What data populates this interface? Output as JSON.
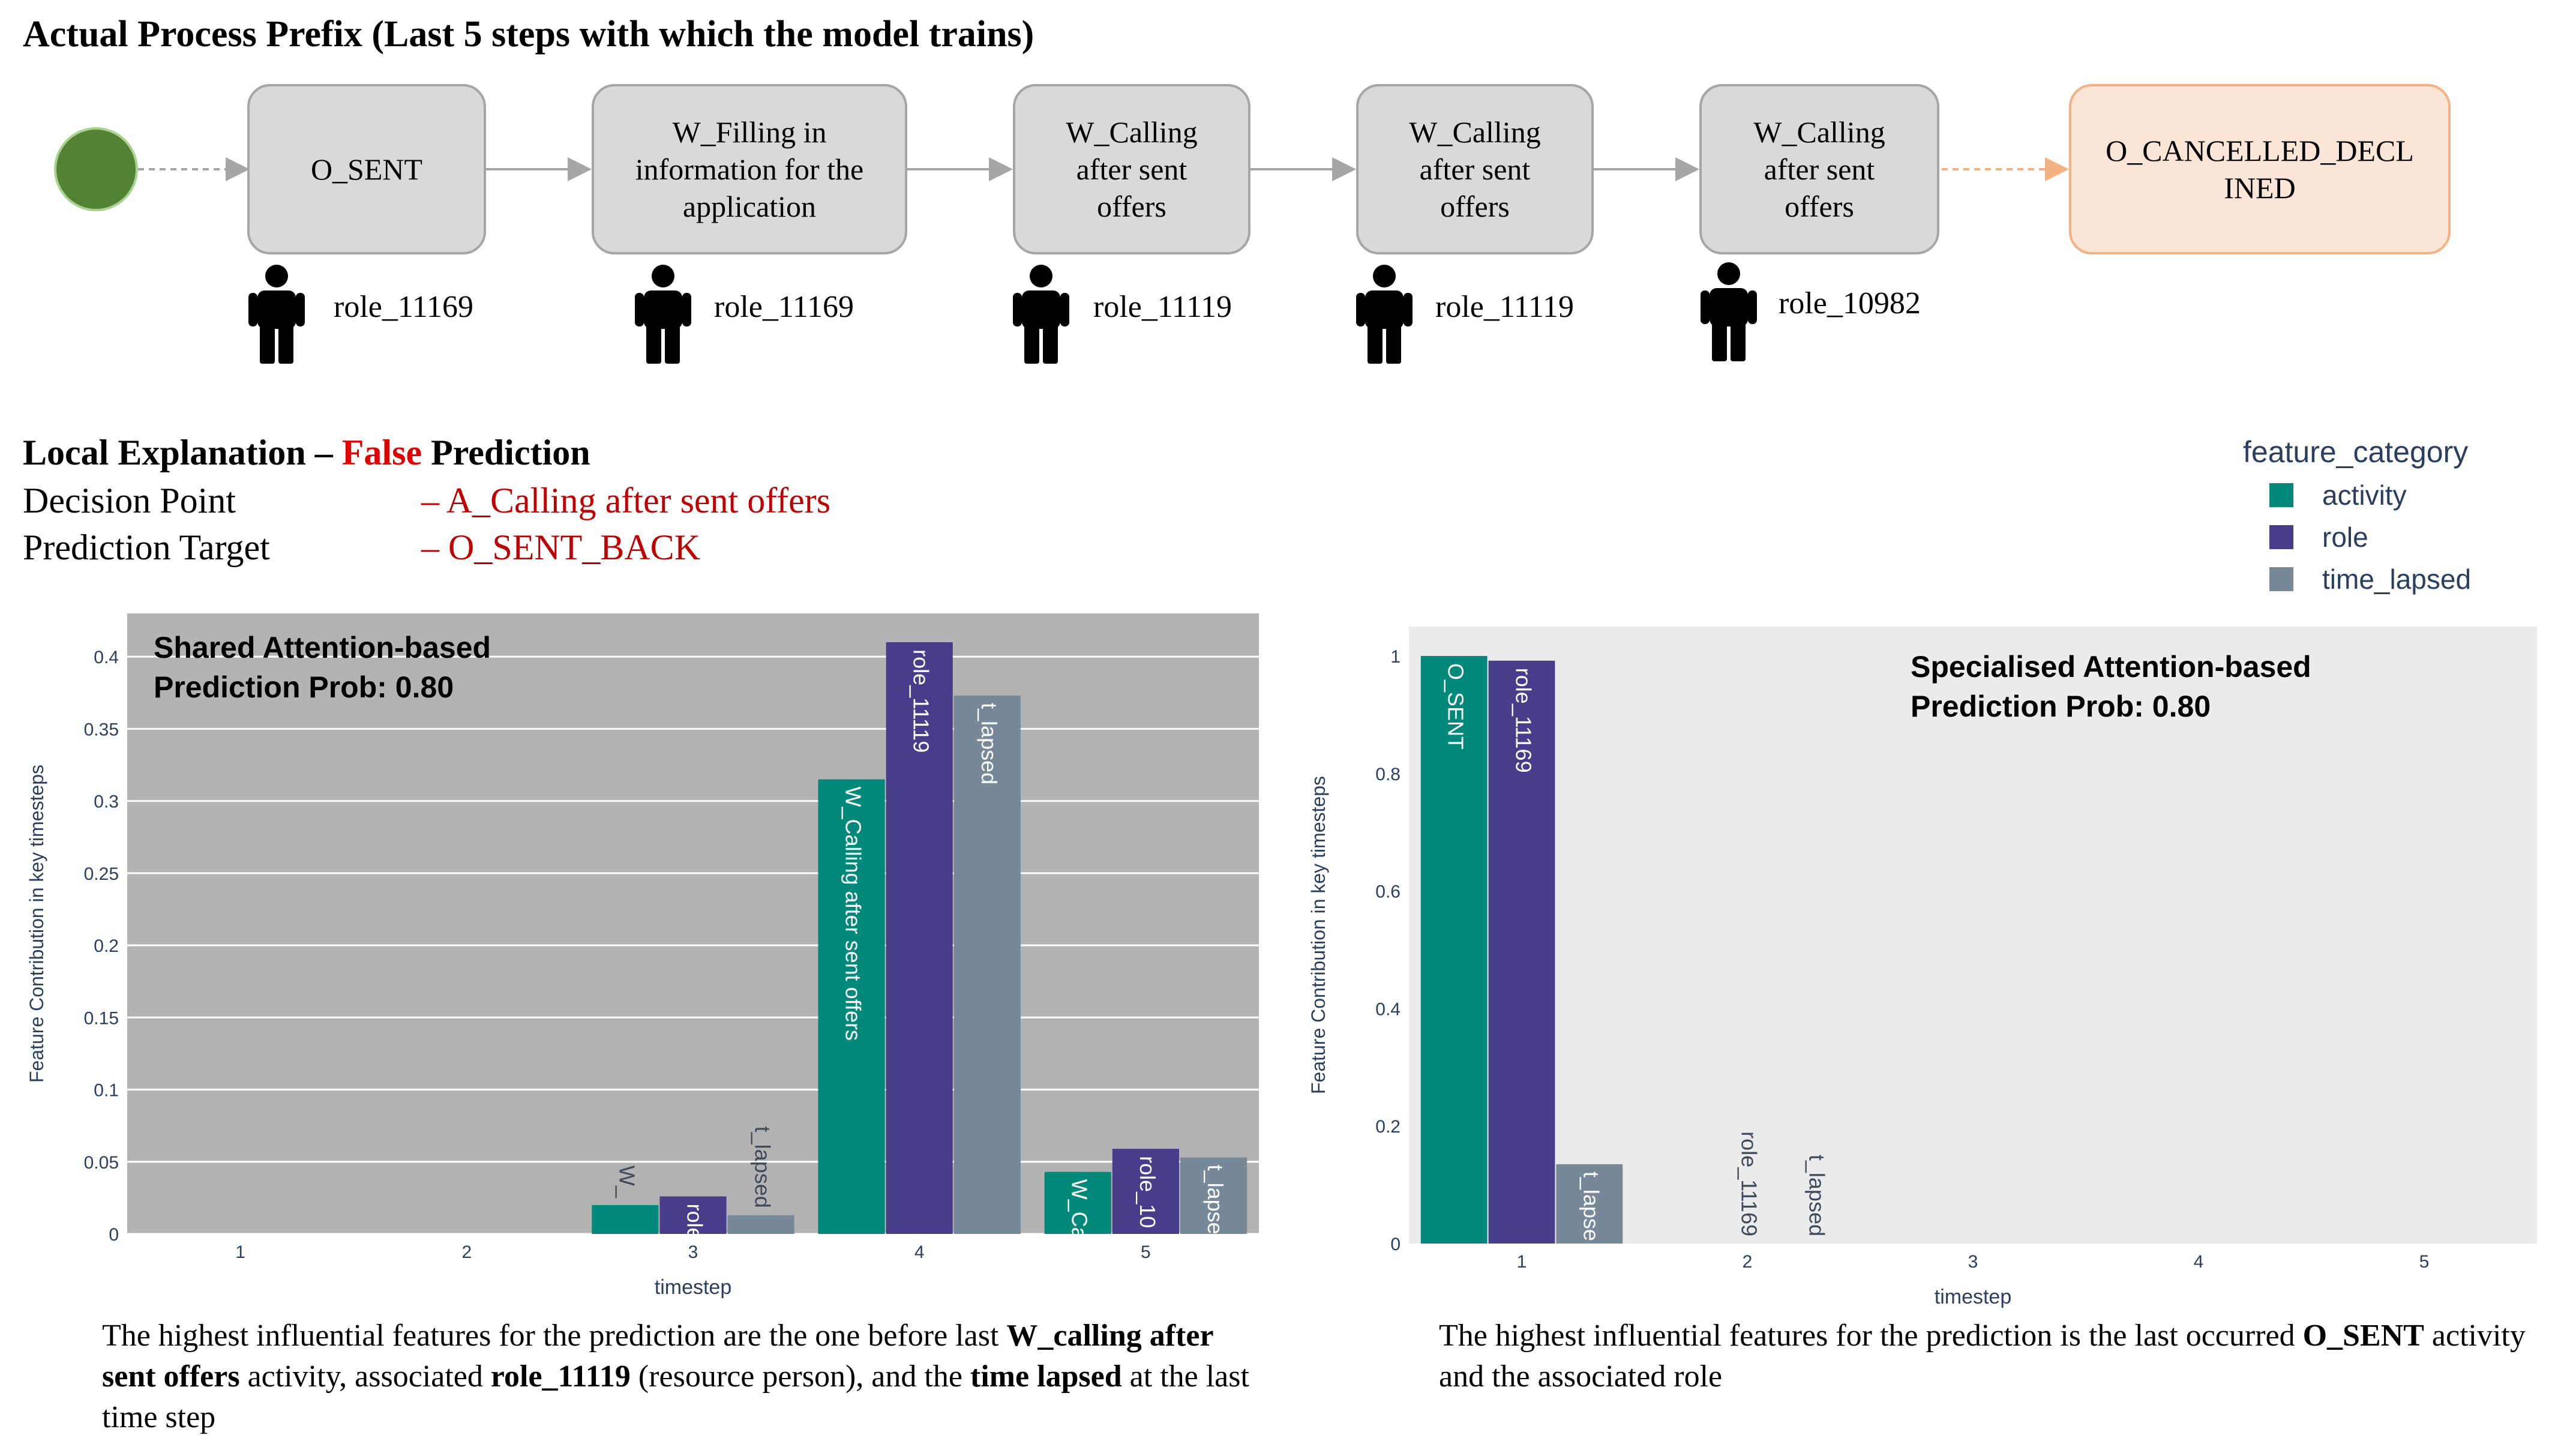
{
  "title": "Actual Process Prefix (Last 5 steps with which the model trains)",
  "process_steps": [
    {
      "activity": "O_SENT",
      "role": "role_11169"
    },
    {
      "activity": "W_Filling in information for the application",
      "role": "role_11169"
    },
    {
      "activity": "W_Calling after sent offers",
      "role": "role_11119"
    },
    {
      "activity": "W_Calling after sent offers",
      "role": "role_11119"
    },
    {
      "activity": "W_Calling after sent offers",
      "role": "role_10982"
    }
  ],
  "process_lines": [
    [
      "O_SENT"
    ],
    [
      "W_Filling in",
      "information for the",
      "application"
    ],
    [
      "W_Calling",
      "after sent",
      "offers"
    ],
    [
      "W_Calling",
      "after sent",
      "offers"
    ],
    [
      "W_Calling",
      "after sent",
      "offers"
    ]
  ],
  "process_target": {
    "label": "O_CANCELLED_DECLINED",
    "lines": [
      "O_CANCELLED_DECL",
      "INED"
    ]
  },
  "local_explanation": {
    "heading_prefix": "Local Explanation – ",
    "heading_false": "False",
    "heading_suffix": " Prediction",
    "decision_point_label": "Decision Point",
    "decision_point_value": "– A_Calling after sent offers",
    "prediction_target_label": "Prediction Target",
    "prediction_target_value": "– O_SENT_BACK"
  },
  "legend": {
    "title": "feature_category",
    "items": [
      {
        "label": "activity",
        "color": "#00897b"
      },
      {
        "label": "role",
        "color": "#483d8b"
      },
      {
        "label": "time_lapsed",
        "color": "#778899"
      }
    ]
  },
  "chart_data": [
    {
      "type": "bar",
      "annotation": [
        "Shared Attention-based",
        "Prediction Prob: 0.80"
      ],
      "xlabel": "timestep",
      "ylabel": "Feature Contribution in key timesteps",
      "categories": [
        "1",
        "2",
        "3",
        "4",
        "5"
      ],
      "ylim": [
        0,
        0.43
      ],
      "yticks": [
        0,
        0.05,
        0.1,
        0.15,
        0.2,
        0.25,
        0.3,
        0.35,
        0.4
      ],
      "ytick_labels": [
        "0",
        "0.05",
        "0.1",
        "0.15",
        "0.2",
        "0.25",
        "0.3",
        "0.35",
        "0.4"
      ],
      "plot_bg": "#b3b3b3",
      "grid": true,
      "series": [
        {
          "name": "activity",
          "color": "#00897b",
          "values": [
            0,
            0,
            0.02,
            0.315,
            0.043
          ],
          "labels": [
            "",
            "",
            "W_",
            "W_Calling after sent offers",
            "W_Ca"
          ]
        },
        {
          "name": "role",
          "color": "#483d8b",
          "values": [
            0,
            0,
            0.026,
            0.41,
            0.059
          ],
          "labels": [
            "",
            "",
            "role",
            "role_11119",
            "role_10"
          ]
        },
        {
          "name": "time_lapsed",
          "color": "#778899",
          "values": [
            0,
            0,
            0.013,
            0.373,
            0.053
          ],
          "labels": [
            "",
            "",
            "t_lapsed",
            "t_lapsed",
            "t_lapse"
          ]
        }
      ]
    },
    {
      "type": "bar",
      "annotation": [
        "Specialised Attention-based",
        "Prediction Prob: 0.80"
      ],
      "xlabel": "timestep",
      "ylabel": "Feature Contribution in key timesteps",
      "categories": [
        "1",
        "2",
        "3",
        "4",
        "5"
      ],
      "ylim": [
        0,
        1.05
      ],
      "yticks": [
        0,
        0.2,
        0.4,
        0.6,
        0.8,
        1
      ],
      "ytick_labels": [
        "0",
        "0.2",
        "0.4",
        "0.6",
        "0.8",
        "1"
      ],
      "plot_bg": "#ebebeb",
      "grid": false,
      "series": [
        {
          "name": "activity",
          "color": "#00897b",
          "values": [
            1.0,
            0,
            0,
            0,
            0
          ],
          "labels": [
            "O_SENT",
            "",
            "",
            "",
            ""
          ]
        },
        {
          "name": "role",
          "color": "#483d8b",
          "values": [
            0.992,
            0,
            0,
            0,
            0
          ],
          "labels": [
            "role_11169",
            "role_11169",
            "",
            "",
            ""
          ]
        },
        {
          "name": "time_lapsed",
          "color": "#778899",
          "values": [
            0.135,
            0,
            0,
            0,
            0
          ],
          "labels": [
            "t_lapse",
            "t_lapsed",
            "",
            "",
            ""
          ]
        }
      ]
    }
  ],
  "captions": {
    "left": [
      {
        "t": "The highest influential features for the prediction are the one before last ",
        "b": false
      },
      {
        "t": "W_calling after sent offers",
        "b": true
      },
      {
        "t": " activity, associated ",
        "b": false
      },
      {
        "t": "role_11119",
        "b": true
      },
      {
        "t": " (resource person), and the ",
        "b": false
      },
      {
        "t": "time lapsed",
        "b": true
      },
      {
        "t": " at the last time step",
        "b": false
      }
    ],
    "right": [
      {
        "t": "The highest influential features for the prediction is the last occurred ",
        "b": false
      },
      {
        "t": "O_SENT",
        "b": true
      },
      {
        "t": " activity and the associated role",
        "b": false
      }
    ]
  }
}
